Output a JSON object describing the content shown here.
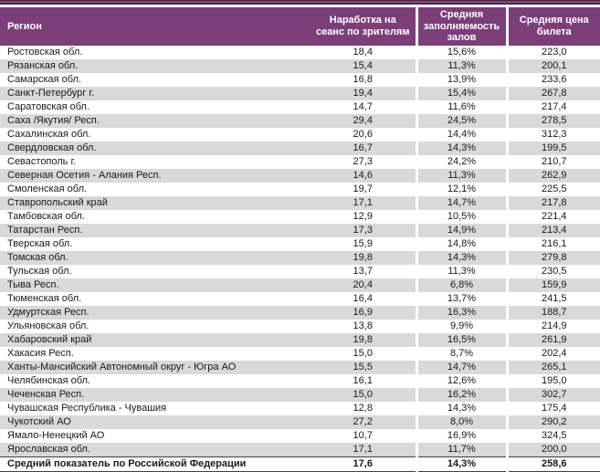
{
  "colors": {
    "header_background": "#7c3e79",
    "top_bar_dark": "#4c2349",
    "top_bar_light": "#8f5a8b",
    "row_stripe": "#d9d9d9",
    "header_text": "#ffffff",
    "summary_border": "#404040"
  },
  "table": {
    "columns": [
      "Регион",
      "Наработка на сеанс по зрителям",
      "Средняя заполняемость залов",
      "Средняя цена билета"
    ],
    "rows": [
      [
        "Ростовская обл.",
        "18,4",
        "15,6%",
        "223,0"
      ],
      [
        "Рязанская обл.",
        "15,4",
        "11,3%",
        "200,1"
      ],
      [
        "Самарская обл.",
        "16,8",
        "13,9%",
        "233,6"
      ],
      [
        "Санкт-Петербург г.",
        "19,4",
        "15,4%",
        "267,8"
      ],
      [
        "Саратовская обл.",
        "14,7",
        "11,6%",
        "217,4"
      ],
      [
        "Саха /Якутия/ Респ.",
        "29,4",
        "24,5%",
        "278,5"
      ],
      [
        "Сахалинская обл.",
        "20,6",
        "14,4%",
        "312,3"
      ],
      [
        "Свердловская обл.",
        "16,7",
        "14,3%",
        "199,5"
      ],
      [
        "Севастополь г.",
        "27,3",
        "24,2%",
        "210,7"
      ],
      [
        "Северная Осетия - Алания Респ.",
        "14,6",
        "11,3%",
        "262,9"
      ],
      [
        "Смоленская обл.",
        "19,7",
        "12,1%",
        "225,5"
      ],
      [
        "Ставропольский край",
        "17,1",
        "14,7%",
        "217,8"
      ],
      [
        "Тамбовская обл.",
        "12,9",
        "10,5%",
        "221,4"
      ],
      [
        "Татарстан Респ.",
        "17,3",
        "14,9%",
        "213,4"
      ],
      [
        "Тверская обл.",
        "15,9",
        "14,8%",
        "216,1"
      ],
      [
        "Томская обл.",
        "19,8",
        "14,3%",
        "279,8"
      ],
      [
        "Тульская обл.",
        "13,7",
        "11,3%",
        "230,5"
      ],
      [
        "Тыва Респ.",
        "20,4",
        "6,8%",
        "159,9"
      ],
      [
        "Тюменская обл.",
        "16,4",
        "13,7%",
        "241,5"
      ],
      [
        "Удмуртская Респ.",
        "16,9",
        "16,3%",
        "188,7"
      ],
      [
        "Ульяновская обл.",
        "13,8",
        "9,9%",
        "214,9"
      ],
      [
        "Хабаровский край",
        "19,8",
        "16,5%",
        "261,9"
      ],
      [
        "Хакасия Респ.",
        "15,0",
        "8,7%",
        "202,4"
      ],
      [
        "Ханты-Мансийский Автономный округ - Югра АО",
        "15,5",
        "14,7%",
        "265,1"
      ],
      [
        "Челябинская обл.",
        "16,1",
        "12,6%",
        "195,0"
      ],
      [
        "Чеченская Респ.",
        "15,0",
        "16,2%",
        "302,7"
      ],
      [
        "Чувашская Республика - Чувашия",
        "12,8",
        "14,3%",
        "175,4"
      ],
      [
        "Чукотский АО",
        "27,2",
        "8,0%",
        "290,2"
      ],
      [
        "Ямало-Ненецкий АО",
        "10,7",
        "16,9%",
        "324,5"
      ],
      [
        "Ярославская обл.",
        "17,1",
        "11,7%",
        "200,0"
      ]
    ],
    "summary": [
      "Средний показатель по Российской Федерации",
      "17,6",
      "14,3%",
      "258,6"
    ]
  }
}
